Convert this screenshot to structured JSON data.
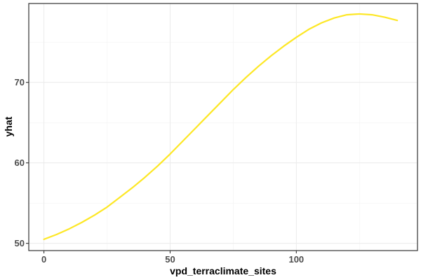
{
  "chart_data": {
    "type": "line",
    "title": "",
    "xlabel": "vpd_terraclimate_sites",
    "ylabel": "yhat",
    "xlim": [
      -6,
      148
    ],
    "ylim": [
      49.1,
      79.8
    ],
    "x_ticks": [
      0,
      50,
      100
    ],
    "y_ticks": [
      50,
      60,
      70
    ],
    "x_tick_labels": [
      "0",
      "50",
      "100"
    ],
    "y_tick_labels": [
      "50",
      "60",
      "70"
    ],
    "grid": true,
    "legend": "none",
    "series": [
      {
        "color": "#FDE725",
        "x": [
          0,
          5,
          10,
          15,
          20,
          25,
          30,
          35,
          40,
          45,
          50,
          55,
          60,
          65,
          70,
          75,
          80,
          85,
          90,
          95,
          100,
          105,
          110,
          115,
          120,
          125,
          130,
          135,
          140
        ],
        "y": [
          50.5,
          51.1,
          51.8,
          52.6,
          53.5,
          54.5,
          55.7,
          56.9,
          58.2,
          59.6,
          61.1,
          62.7,
          64.3,
          65.9,
          67.5,
          69.1,
          70.6,
          72.0,
          73.3,
          74.5,
          75.6,
          76.6,
          77.4,
          78.0,
          78.4,
          78.5,
          78.4,
          78.1,
          77.7
        ]
      }
    ]
  }
}
